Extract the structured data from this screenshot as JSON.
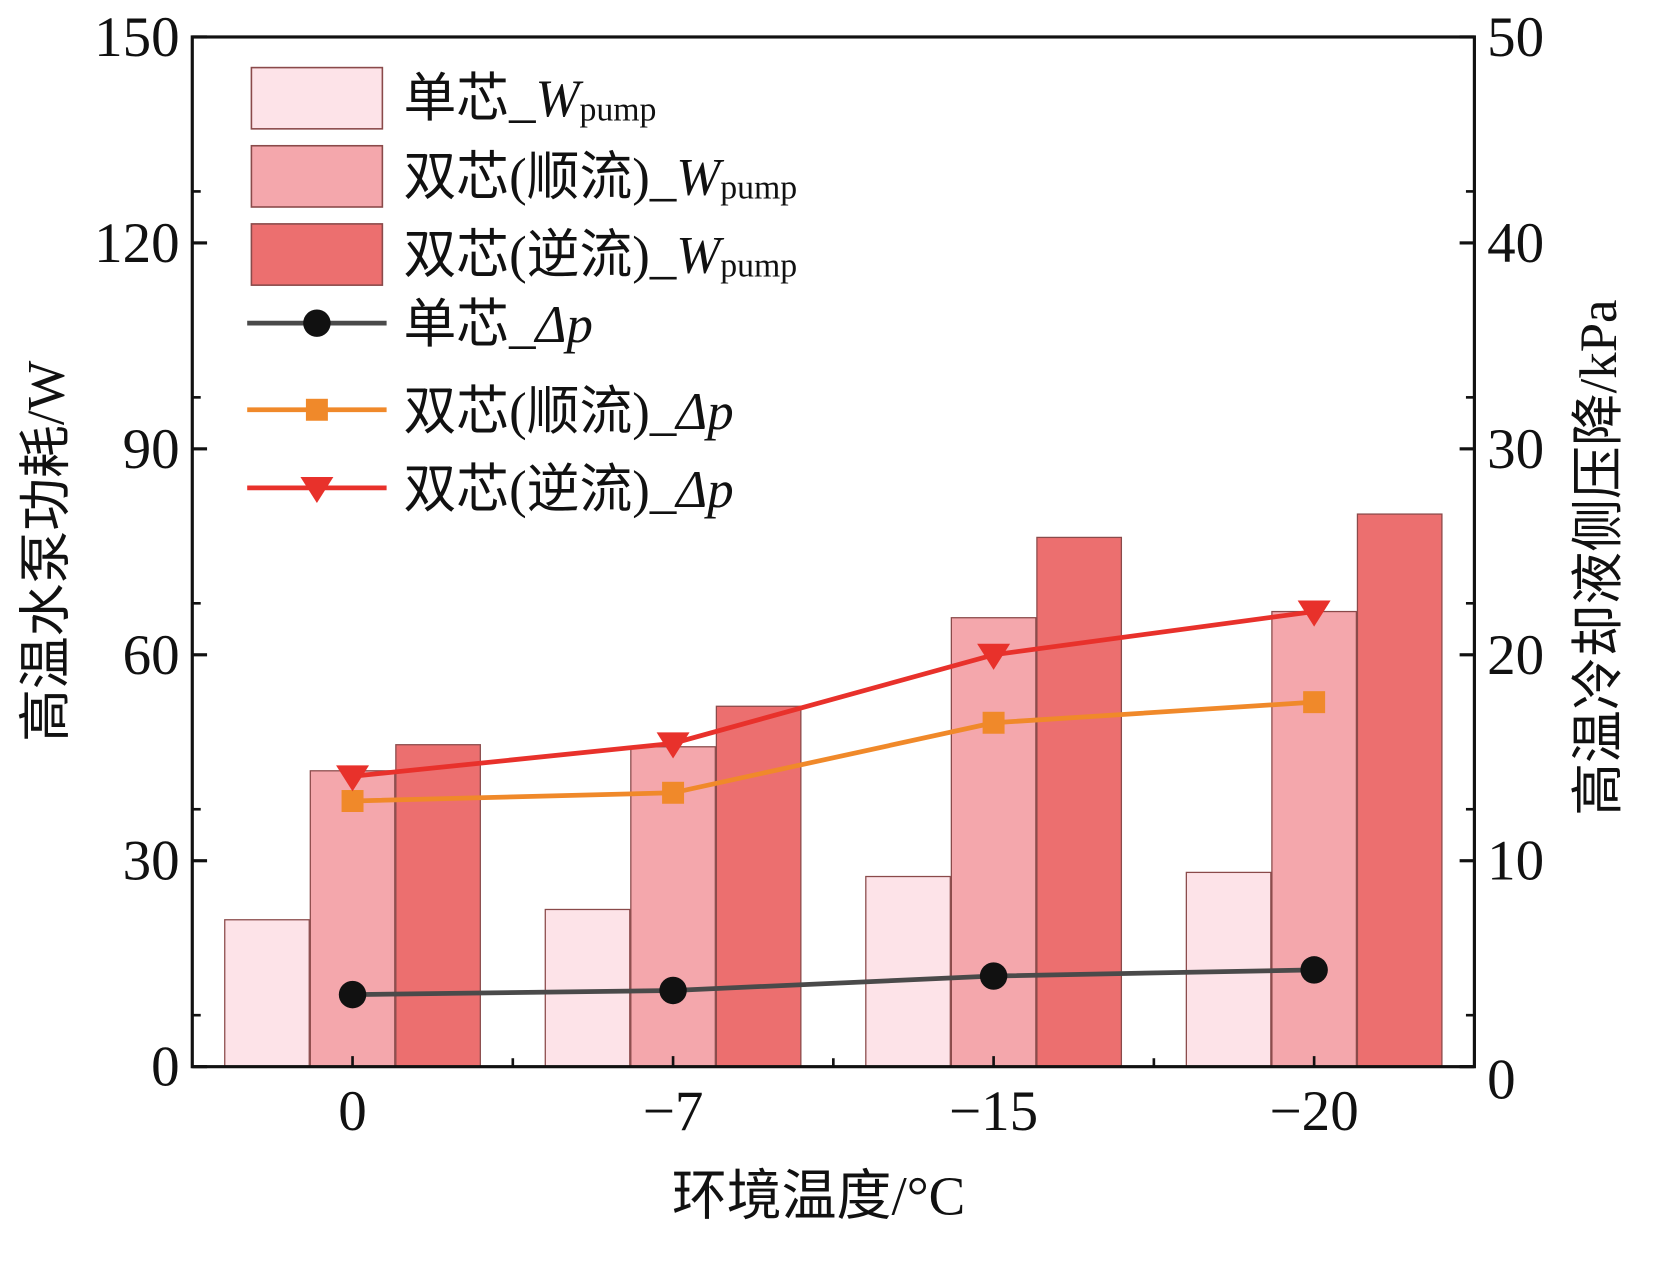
{
  "chart_data": {
    "type": "bar",
    "xlabel": "环境温度/°C",
    "ylabel": "高温水泵功耗/W",
    "y2label": "高温冷却液侧压降/kPa",
    "categories": [
      "0",
      "−7",
      "−15",
      "−20"
    ],
    "ylim": [
      0,
      150
    ],
    "yticks": [
      "0",
      "30",
      "60",
      "90",
      "120",
      "150"
    ],
    "y2lim": [
      0,
      50
    ],
    "y2ticks": [
      "0",
      "10",
      "20",
      "30",
      "40",
      "50"
    ],
    "legend_position": "top-left",
    "bar_series": [
      {
        "name_prefix": "单芯_",
        "symbol": "W",
        "subscript": "pump",
        "color": "#fde3e8",
        "values": [
          21.4,
          22.9,
          27.7,
          28.3
        ]
      },
      {
        "name_prefix": "双芯(顺流)_",
        "symbol": "W",
        "subscript": "pump",
        "color": "#f4a7ac",
        "values": [
          43.1,
          46.6,
          65.4,
          66.3
        ]
      },
      {
        "name_prefix": "双芯(逆流)_",
        "symbol": "W",
        "subscript": "pump",
        "color": "#ec6f6f",
        "values": [
          46.9,
          52.5,
          77.1,
          80.5
        ]
      }
    ],
    "line_series": [
      {
        "name_prefix": "单芯_",
        "symbol": "Δp",
        "color": "#4a4a4a",
        "marker": "circle",
        "axis": "right",
        "values": [
          3.5,
          3.7,
          4.4,
          4.7
        ]
      },
      {
        "name_prefix": "双芯(顺流)_",
        "symbol": "Δp",
        "color": "#f0892a",
        "marker": "square",
        "axis": "right",
        "values": [
          12.9,
          13.3,
          16.7,
          17.7
        ]
      },
      {
        "name_prefix": "双芯(逆流)_",
        "symbol": "Δp",
        "color": "#e8312b",
        "marker": "triangle-down",
        "axis": "right",
        "values": [
          14.1,
          15.7,
          20.0,
          22.1
        ]
      }
    ]
  }
}
